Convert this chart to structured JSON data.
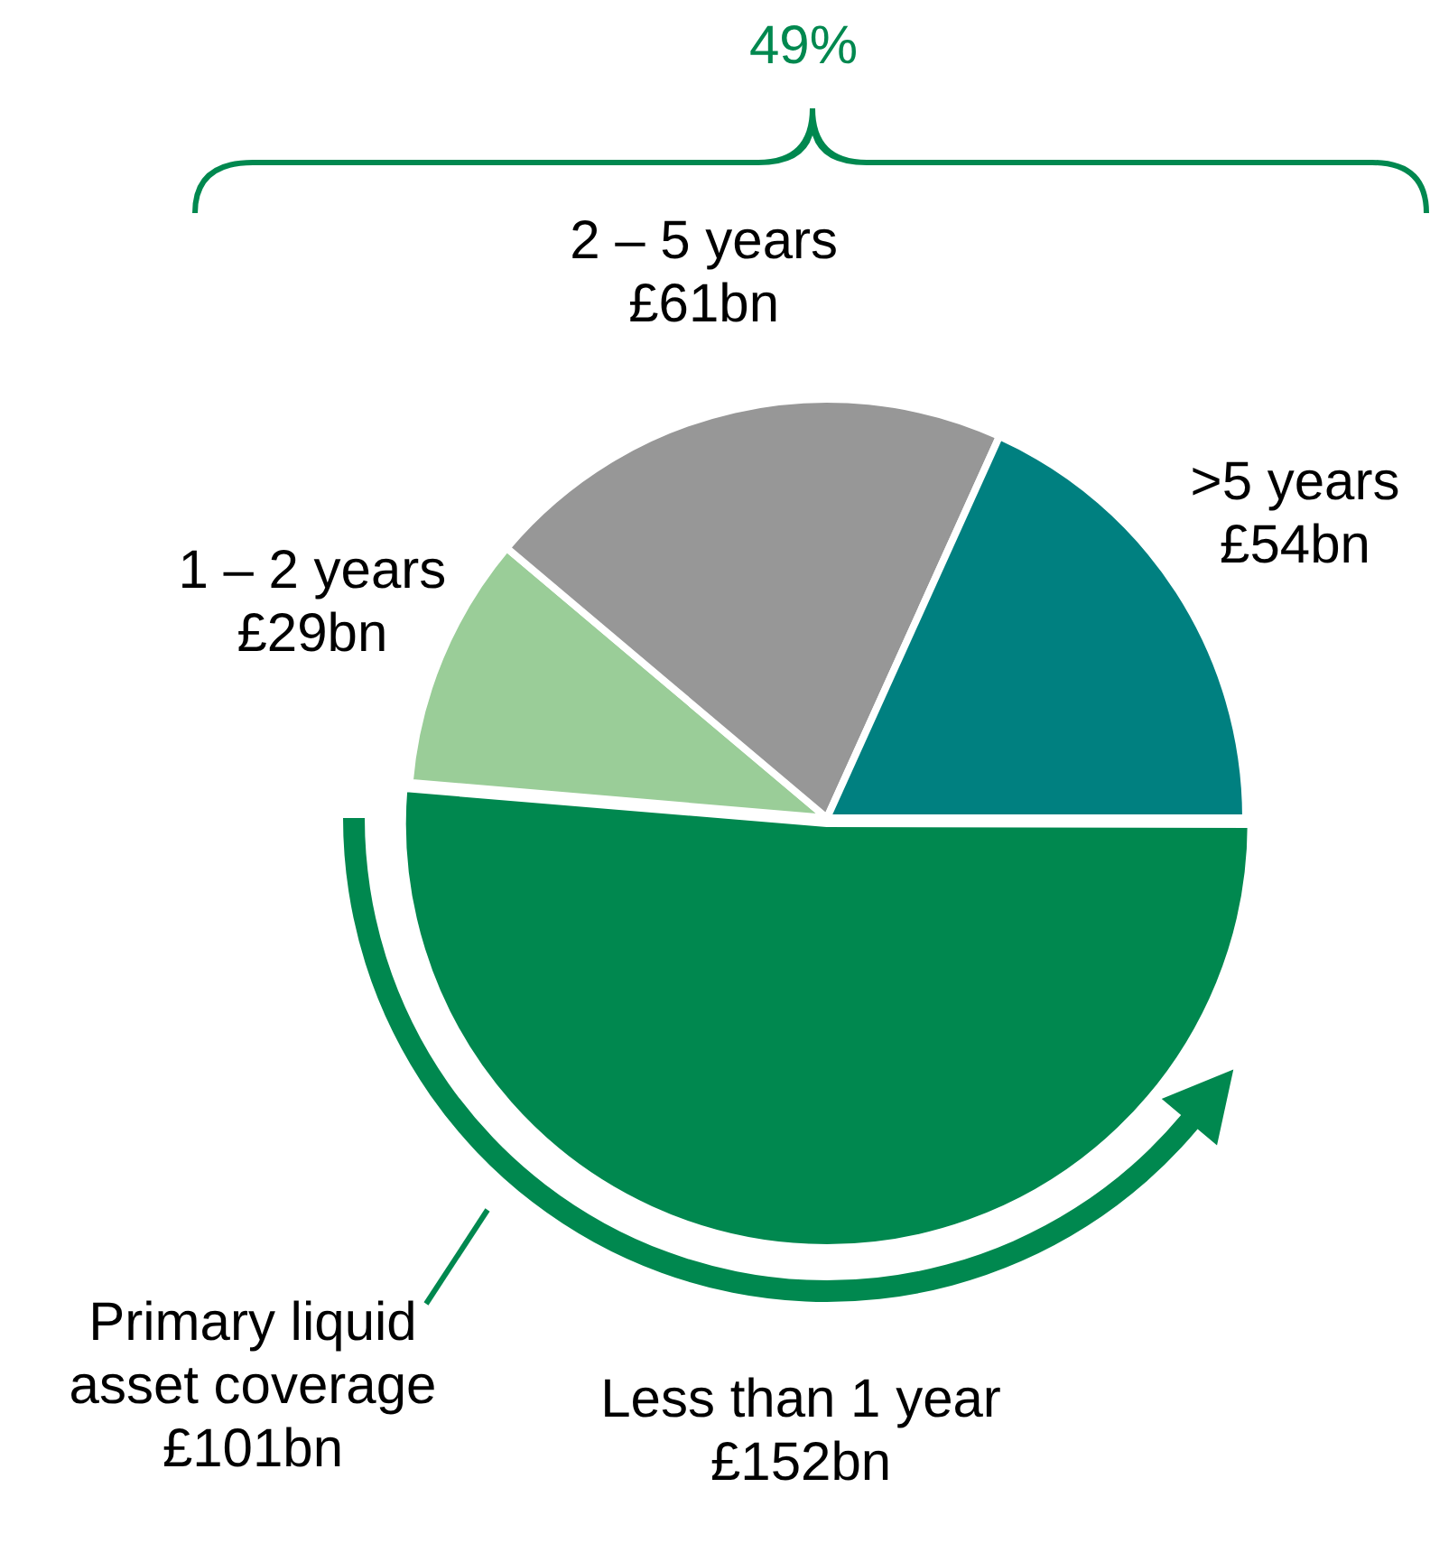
{
  "chart_data": {
    "type": "pie",
    "categories": [
      "Less than 1 year",
      "1 – 2 years",
      "2 – 5 years",
      ">5 years"
    ],
    "values": [
      152,
      29,
      61,
      54
    ],
    "value_labels": [
      "£152bn",
      "£29bn",
      "£61bn",
      "£54bn"
    ],
    "colors": [
      "#00884f",
      "#9acd98",
      "#979797",
      "#008080"
    ],
    "legend": false,
    "annotations": [
      "49%",
      "Primary liquid asset coverage £101bn"
    ]
  }
}
